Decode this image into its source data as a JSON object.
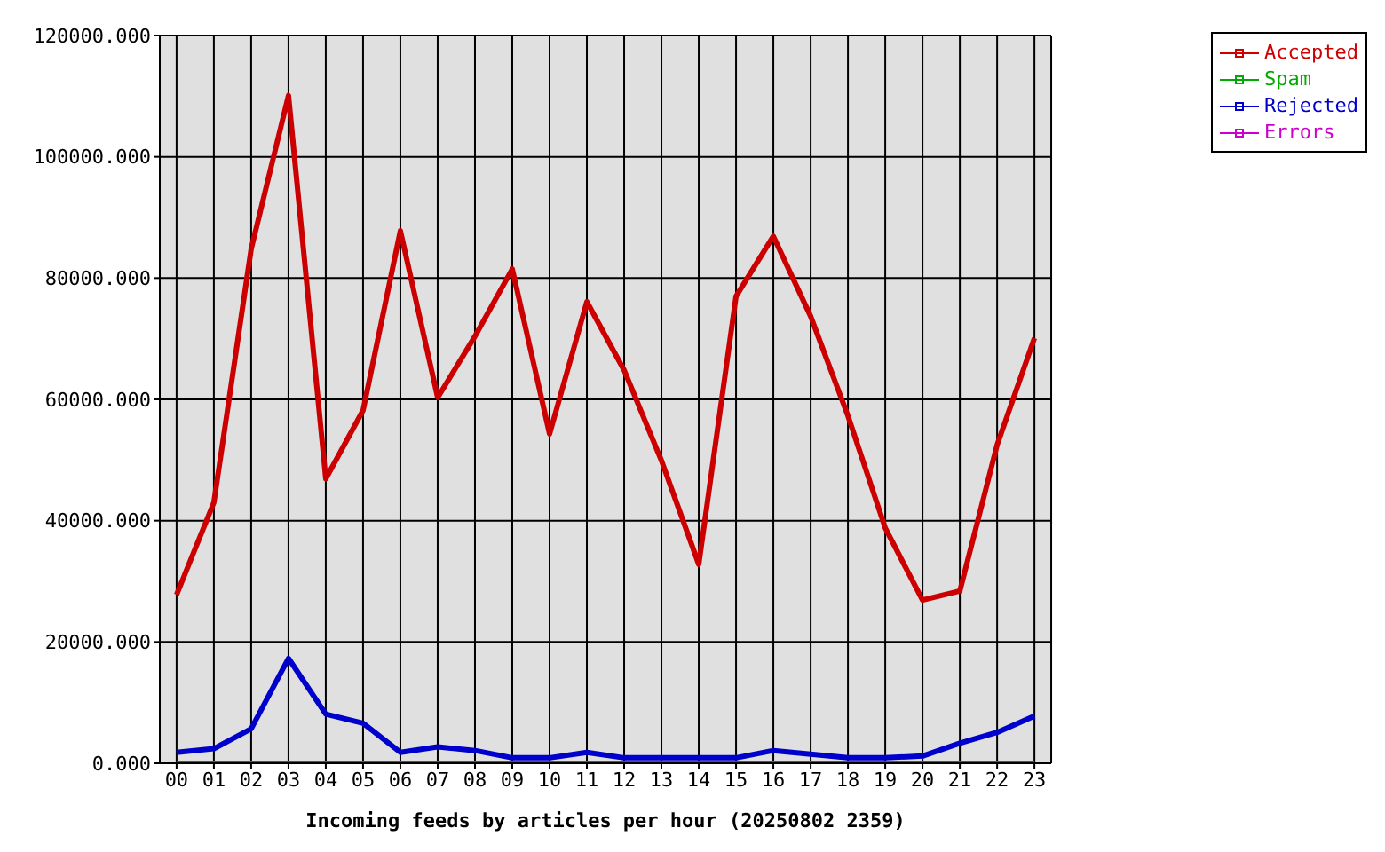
{
  "chart_data": {
    "type": "line",
    "xlabel": "Incoming feeds by articles per hour (20250802 2359)",
    "categories": [
      "00",
      "01",
      "02",
      "03",
      "04",
      "05",
      "06",
      "07",
      "08",
      "09",
      "10",
      "11",
      "12",
      "13",
      "14",
      "15",
      "16",
      "17",
      "18",
      "19",
      "20",
      "21",
      "22",
      "23"
    ],
    "series": [
      {
        "name": "Accepted",
        "color": "#cc0000",
        "values": [
          27800,
          43000,
          84800,
          110100,
          46900,
          58200,
          87800,
          60300,
          70400,
          81500,
          54300,
          76100,
          64800,
          49900,
          32800,
          77000,
          86900,
          73700,
          57300,
          38800,
          26900,
          28400,
          52500,
          70100
        ]
      },
      {
        "name": "Spam",
        "color": "#00aa00",
        "values": [
          null,
          null,
          null,
          null,
          null,
          null,
          null,
          null,
          null,
          null,
          null,
          null,
          null,
          null,
          null,
          null,
          null,
          null,
          null,
          null,
          null,
          null,
          null,
          null
        ]
      },
      {
        "name": "Rejected",
        "color": "#0000cc",
        "values": [
          1800,
          2400,
          5700,
          17300,
          8100,
          6600,
          1800,
          2700,
          2100,
          900,
          900,
          1800,
          900,
          900,
          900,
          900,
          2100,
          1500,
          900,
          900,
          1200,
          3300,
          5100,
          7800
        ]
      },
      {
        "name": "Errors",
        "color": "#cc00cc",
        "values": [
          0,
          0,
          0,
          0,
          0,
          0,
          0,
          0,
          0,
          0,
          0,
          0,
          0,
          0,
          0,
          0,
          0,
          0,
          0,
          0,
          0,
          0,
          0,
          0
        ]
      }
    ],
    "ylim": [
      0,
      120000
    ],
    "yticks": [
      {
        "value": 0,
        "label": "0.000"
      },
      {
        "value": 20000,
        "label": "20000.000"
      },
      {
        "value": 40000,
        "label": "40000.000"
      },
      {
        "value": 60000,
        "label": "60000.000"
      },
      {
        "value": 80000,
        "label": "80000.000"
      },
      {
        "value": 100000,
        "label": "100000.000"
      },
      {
        "value": 120000,
        "label": "120000.000"
      }
    ],
    "grid": true,
    "legend": "top right",
    "line_style": "solid"
  }
}
